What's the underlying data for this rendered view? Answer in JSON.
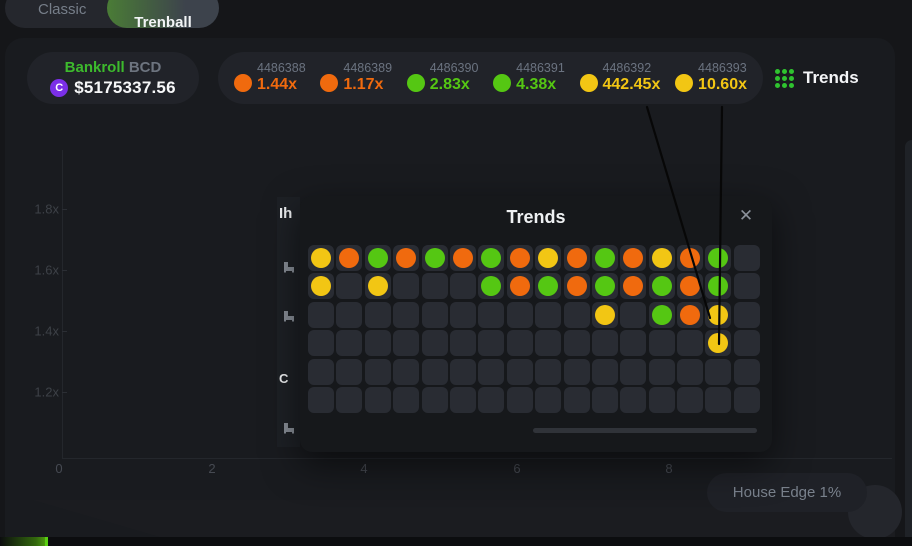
{
  "tabs": {
    "classic": "Classic",
    "trenball": "Trenball"
  },
  "bankroll": {
    "label": "Bankroll",
    "currency": "BCD",
    "coin_letter": "C",
    "amount": "$5175337.56"
  },
  "history": [
    {
      "id": "4486388",
      "multiplier": "1.44x",
      "color": "orange"
    },
    {
      "id": "4486389",
      "multiplier": "1.17x",
      "color": "orange"
    },
    {
      "id": "4486390",
      "multiplier": "2.83x",
      "color": "green"
    },
    {
      "id": "4486391",
      "multiplier": "4.38x",
      "color": "green"
    },
    {
      "id": "4486392",
      "multiplier": "442.45x",
      "color": "yellow"
    },
    {
      "id": "4486393",
      "multiplier": "10.60x",
      "color": "yellow"
    }
  ],
  "trends_button": {
    "label": "Trends"
  },
  "chart": {
    "y_ticks": [
      "1.8x",
      "1.6x",
      "1.4x",
      "1.2x"
    ],
    "x_ticks": [
      "0",
      "2",
      "4",
      "6",
      "8"
    ]
  },
  "modal": {
    "title": "Trends",
    "close_icon": "✕",
    "grid": {
      "columns": 16,
      "rows": [
        [
          "yellow",
          "orange",
          "green",
          "orange",
          "green",
          "orange",
          "green",
          "orange",
          "yellow",
          "orange",
          "green",
          "orange",
          "yellow",
          "orange",
          "green",
          ""
        ],
        [
          "yellow",
          "",
          "yellow",
          "",
          "",
          "",
          "green",
          "orange",
          "green",
          "orange",
          "green",
          "orange",
          "green",
          "orange",
          "green",
          ""
        ],
        [
          "",
          "",
          "",
          "",
          "",
          "",
          "",
          "",
          "",
          "",
          "yellow",
          "",
          "green",
          "orange",
          "yellow",
          ""
        ],
        [
          "",
          "",
          "",
          "",
          "",
          "",
          "",
          "",
          "",
          "",
          "",
          "",
          "",
          "",
          "yellow",
          ""
        ],
        [
          "",
          "",
          "",
          "",
          "",
          "",
          "",
          "",
          "",
          "",
          "",
          "",
          "",
          "",
          "",
          ""
        ],
        [
          "",
          "",
          "",
          "",
          "",
          "",
          "",
          "",
          "",
          "",
          "",
          "",
          "",
          "",
          "",
          ""
        ]
      ]
    }
  },
  "house_edge": {
    "label": "House Edge 1%"
  },
  "fragments": {
    "text_top": "Ih",
    "text_bottom": "C"
  },
  "colors": {
    "orange": "#f06a0e",
    "green": "#55c713",
    "yellow": "#f2c614",
    "accent_green": "#2fc32f",
    "coin_purple": "#7b2fe8"
  }
}
